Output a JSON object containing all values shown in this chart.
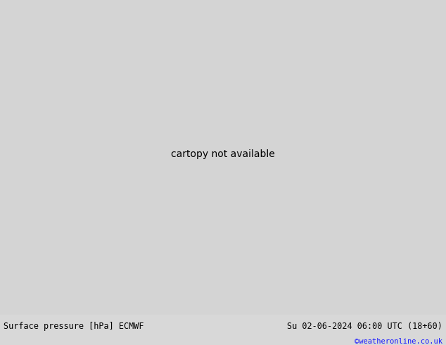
{
  "bottom_left_text": "Surface pressure [hPa] ECMWF",
  "bottom_right_text": "Su 02-06-2024 06:00 UTC (18+60)",
  "copyright_text": "©weatheronline.co.uk",
  "bg_color": "#d4d4d4",
  "land_color": "#c8e8a0",
  "ocean_color": "#d4d4d4",
  "border_color": "#888888",
  "coast_color": "#888888",
  "isobar_black": "#000000",
  "isobar_blue": "#1a1aff",
  "isobar_red": "#cc0000",
  "label_black": "#000000",
  "label_blue": "#1a1aff",
  "label_red": "#cc0000",
  "copyright_color": "#1a1aff",
  "bottom_bar_color": "#d8d8d8",
  "figure_width": 6.34,
  "figure_height": 4.9,
  "dpi": 100,
  "lon_min": -125.0,
  "lon_max": -55.0,
  "lat_min": 2.0,
  "lat_max": 42.0
}
